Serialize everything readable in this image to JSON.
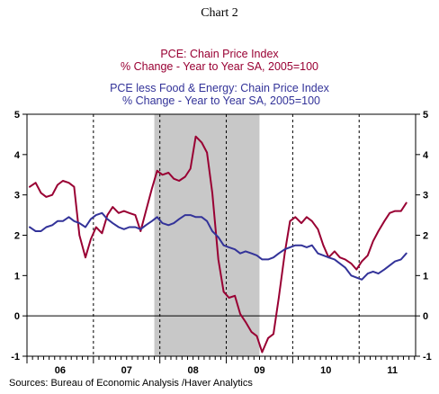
{
  "caption": "Chart 2",
  "chart_data": {
    "type": "line",
    "title_lines": [
      {
        "text": "PCE: Chain Price Index",
        "color": "#990033"
      },
      {
        "text": "% Change - Year to Year   SA, 2005=100",
        "color": "#990033"
      },
      {
        "text": "PCE less Food & Energy: Chain Price Index",
        "color": "#333399"
      },
      {
        "text": "% Change - Year to Year   SA, 2005=100",
        "color": "#333399"
      }
    ],
    "source": "Sources:  Bureau of Economic Analysis /Haver Analytics",
    "x_range": [
      2006.0,
      2011.85
    ],
    "ylim": [
      -1,
      5
    ],
    "y_ticks": [
      -1,
      0,
      1,
      2,
      3,
      4,
      5
    ],
    "y_tick_labels": [
      "-1",
      "0",
      "1",
      "2",
      "3",
      "4",
      "5"
    ],
    "x_tick_labels": [
      {
        "label": "06",
        "at": 2006.5
      },
      {
        "label": "07",
        "at": 2007.5
      },
      {
        "label": "08",
        "at": 2008.5
      },
      {
        "label": "09",
        "at": 2009.5
      },
      {
        "label": "10",
        "at": 2010.5
      },
      {
        "label": "11",
        "at": 2011.5
      }
    ],
    "year_gridlines": [
      2007,
      2008,
      2009,
      2010,
      2011
    ],
    "zero_line": 0,
    "recession": {
      "start": 2007.917,
      "end": 2009.5,
      "color": "#c8c8c8"
    },
    "series": [
      {
        "color": "#990033",
        "values": [
          [
            2006.04,
            3.2
          ],
          [
            2006.13,
            3.3
          ],
          [
            2006.21,
            3.05
          ],
          [
            2006.29,
            2.95
          ],
          [
            2006.38,
            3.0
          ],
          [
            2006.46,
            3.25
          ],
          [
            2006.54,
            3.35
          ],
          [
            2006.63,
            3.3
          ],
          [
            2006.71,
            3.2
          ],
          [
            2006.79,
            2.0
          ],
          [
            2006.88,
            1.45
          ],
          [
            2006.96,
            1.9
          ],
          [
            2007.04,
            2.2
          ],
          [
            2007.13,
            2.05
          ],
          [
            2007.21,
            2.5
          ],
          [
            2007.29,
            2.7
          ],
          [
            2007.38,
            2.55
          ],
          [
            2007.46,
            2.6
          ],
          [
            2007.54,
            2.55
          ],
          [
            2007.63,
            2.5
          ],
          [
            2007.71,
            2.1
          ],
          [
            2007.79,
            2.6
          ],
          [
            2007.88,
            3.15
          ],
          [
            2007.96,
            3.6
          ],
          [
            2008.04,
            3.5
          ],
          [
            2008.13,
            3.55
          ],
          [
            2008.21,
            3.4
          ],
          [
            2008.29,
            3.35
          ],
          [
            2008.38,
            3.45
          ],
          [
            2008.46,
            3.65
          ],
          [
            2008.54,
            4.45
          ],
          [
            2008.63,
            4.3
          ],
          [
            2008.71,
            4.05
          ],
          [
            2008.79,
            3.05
          ],
          [
            2008.88,
            1.4
          ],
          [
            2008.96,
            0.6
          ],
          [
            2009.04,
            0.45
          ],
          [
            2009.13,
            0.5
          ],
          [
            2009.21,
            0.05
          ],
          [
            2009.29,
            -0.15
          ],
          [
            2009.38,
            -0.4
          ],
          [
            2009.46,
            -0.5
          ],
          [
            2009.54,
            -0.9
          ],
          [
            2009.63,
            -0.55
          ],
          [
            2009.71,
            -0.45
          ],
          [
            2009.79,
            0.45
          ],
          [
            2009.88,
            1.55
          ],
          [
            2009.96,
            2.35
          ],
          [
            2010.04,
            2.45
          ],
          [
            2010.13,
            2.3
          ],
          [
            2010.21,
            2.45
          ],
          [
            2010.29,
            2.35
          ],
          [
            2010.38,
            2.15
          ],
          [
            2010.46,
            1.75
          ],
          [
            2010.54,
            1.45
          ],
          [
            2010.63,
            1.6
          ],
          [
            2010.71,
            1.45
          ],
          [
            2010.79,
            1.4
          ],
          [
            2010.88,
            1.3
          ],
          [
            2010.96,
            1.15
          ],
          [
            2011.04,
            1.35
          ],
          [
            2011.13,
            1.5
          ],
          [
            2011.21,
            1.85
          ],
          [
            2011.29,
            2.1
          ],
          [
            2011.38,
            2.35
          ],
          [
            2011.46,
            2.55
          ],
          [
            2011.54,
            2.6
          ],
          [
            2011.63,
            2.6
          ],
          [
            2011.71,
            2.8
          ]
        ]
      },
      {
        "color": "#333399",
        "values": [
          [
            2006.04,
            2.2
          ],
          [
            2006.13,
            2.1
          ],
          [
            2006.21,
            2.1
          ],
          [
            2006.29,
            2.2
          ],
          [
            2006.38,
            2.25
          ],
          [
            2006.46,
            2.35
          ],
          [
            2006.54,
            2.35
          ],
          [
            2006.63,
            2.45
          ],
          [
            2006.71,
            2.35
          ],
          [
            2006.79,
            2.3
          ],
          [
            2006.88,
            2.2
          ],
          [
            2006.96,
            2.4
          ],
          [
            2007.04,
            2.5
          ],
          [
            2007.13,
            2.55
          ],
          [
            2007.21,
            2.4
          ],
          [
            2007.29,
            2.3
          ],
          [
            2007.38,
            2.2
          ],
          [
            2007.46,
            2.15
          ],
          [
            2007.54,
            2.2
          ],
          [
            2007.63,
            2.2
          ],
          [
            2007.71,
            2.15
          ],
          [
            2007.79,
            2.25
          ],
          [
            2007.88,
            2.35
          ],
          [
            2007.96,
            2.45
          ],
          [
            2008.04,
            2.3
          ],
          [
            2008.13,
            2.25
          ],
          [
            2008.21,
            2.3
          ],
          [
            2008.29,
            2.4
          ],
          [
            2008.38,
            2.5
          ],
          [
            2008.46,
            2.5
          ],
          [
            2008.54,
            2.45
          ],
          [
            2008.63,
            2.45
          ],
          [
            2008.71,
            2.35
          ],
          [
            2008.79,
            2.1
          ],
          [
            2008.88,
            1.95
          ],
          [
            2008.96,
            1.75
          ],
          [
            2009.04,
            1.7
          ],
          [
            2009.13,
            1.65
          ],
          [
            2009.21,
            1.55
          ],
          [
            2009.29,
            1.6
          ],
          [
            2009.38,
            1.55
          ],
          [
            2009.46,
            1.5
          ],
          [
            2009.54,
            1.4
          ],
          [
            2009.63,
            1.4
          ],
          [
            2009.71,
            1.45
          ],
          [
            2009.79,
            1.55
          ],
          [
            2009.88,
            1.65
          ],
          [
            2009.96,
            1.7
          ],
          [
            2010.04,
            1.75
          ],
          [
            2010.13,
            1.75
          ],
          [
            2010.21,
            1.7
          ],
          [
            2010.29,
            1.75
          ],
          [
            2010.38,
            1.55
          ],
          [
            2010.46,
            1.5
          ],
          [
            2010.54,
            1.45
          ],
          [
            2010.63,
            1.4
          ],
          [
            2010.71,
            1.3
          ],
          [
            2010.79,
            1.2
          ],
          [
            2010.88,
            1.0
          ],
          [
            2010.96,
            0.95
          ],
          [
            2011.04,
            0.9
          ],
          [
            2011.13,
            1.05
          ],
          [
            2011.21,
            1.1
          ],
          [
            2011.29,
            1.05
          ],
          [
            2011.38,
            1.15
          ],
          [
            2011.46,
            1.25
          ],
          [
            2011.54,
            1.35
          ],
          [
            2011.63,
            1.4
          ],
          [
            2011.71,
            1.55
          ]
        ]
      }
    ]
  }
}
